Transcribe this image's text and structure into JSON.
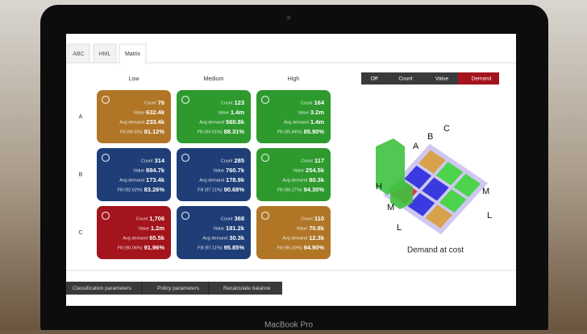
{
  "tabs": [
    "ABC",
    "HML",
    "Matrix"
  ],
  "columns": [
    "Low",
    "Medium",
    "High"
  ],
  "rows": [
    "A",
    "B",
    "C"
  ],
  "toggles": [
    "Off",
    "Count",
    "Value",
    "Demand"
  ],
  "cells": [
    [
      {
        "count": "76",
        "value": "632.4k",
        "avg": "233.4k",
        "fill_label": "Fill (90.6%)",
        "fill": "81.12%"
      },
      {
        "count": "123",
        "value": "1.4m",
        "avg": "560.8k",
        "fill_label": "Fill (94.91%)",
        "fill": "88.31%"
      },
      {
        "count": "164",
        "value": "3.2m",
        "avg": "1.4m",
        "fill_label": "Fill (95.84%)",
        "fill": "85.90%"
      }
    ],
    [
      {
        "count": "314",
        "value": "884.7k",
        "avg": "173.4k",
        "fill_label": "Fill (92.62%)",
        "fill": "83.26%"
      },
      {
        "count": "285",
        "value": "760.7k",
        "avg": "178.9k",
        "fill_label": "Fill (97.11%)",
        "fill": "90.68%"
      },
      {
        "count": "117",
        "value": "254.5k",
        "avg": "80.3k",
        "fill_label": "Fill (96.27%)",
        "fill": "94.30%"
      }
    ],
    [
      {
        "count": "1,706",
        "value": "1.2m",
        "avg": "65.5k",
        "fill_label": "Fill (90.04%)",
        "fill": "91.96%"
      },
      {
        "count": "368",
        "value": "181.2k",
        "avg": "30.3k",
        "fill_label": "Fill (97.11%)",
        "fill": "95.85%"
      },
      {
        "count": "110",
        "value": "70.8k",
        "avg": "12.3k",
        "fill_label": "Fill (95.03%)",
        "fill": "94.90%"
      }
    ]
  ],
  "metric_labels": {
    "count": "Count",
    "value": "Value",
    "avg": "Avg demand"
  },
  "chart3d": {
    "caption": "Demand at cost",
    "top_labels": [
      "A",
      "B",
      "C"
    ],
    "left_labels": [
      "H",
      "M",
      "L"
    ],
    "right_labels": [
      "M",
      "L"
    ]
  },
  "bottom_buttons": [
    "Classification parameters",
    "Policy parameters",
    "Recalculate balance"
  ],
  "device_label": "MacBook Pro"
}
